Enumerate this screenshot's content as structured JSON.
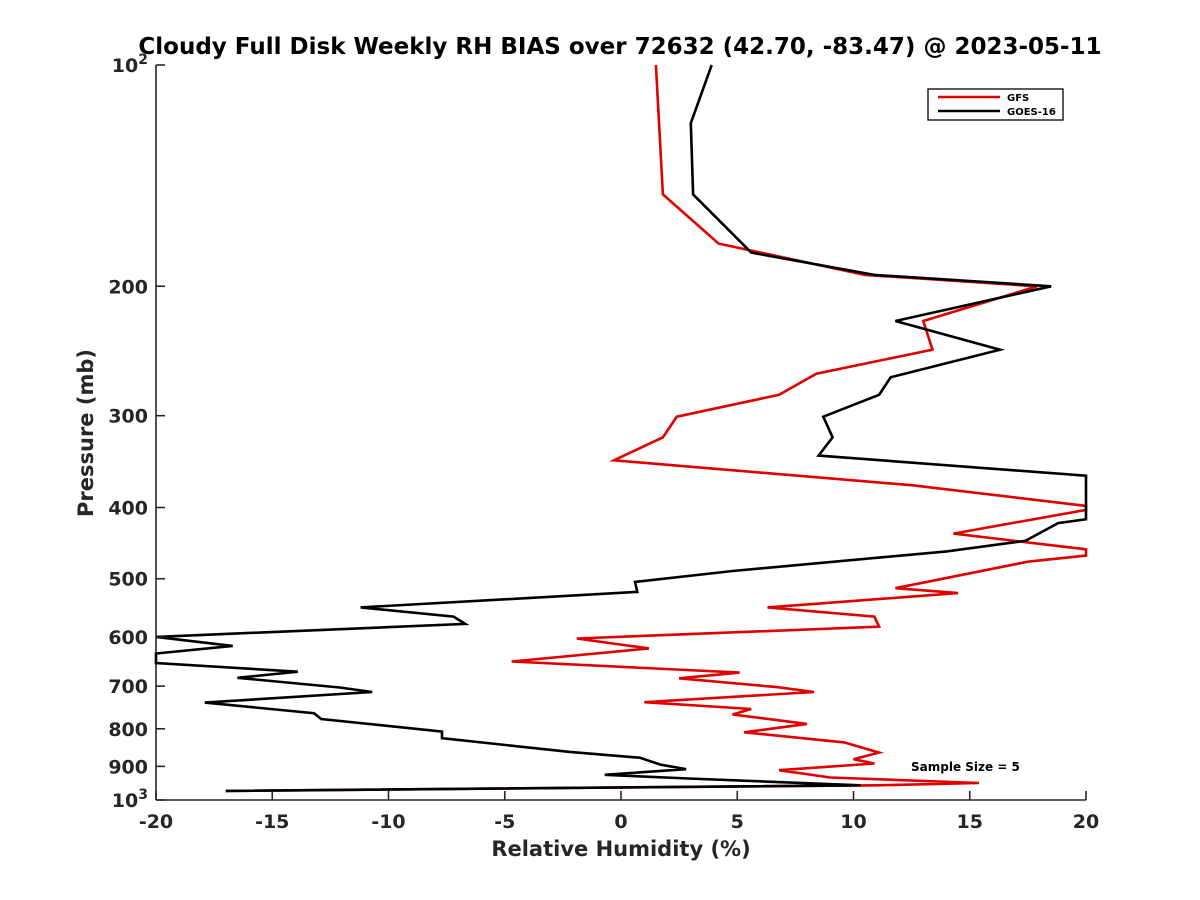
{
  "chart_data": {
    "type": "line",
    "title": "Cloudy Full Disk Weekly RH BIAS over 72632 (42.70, -83.47) @ 2023-05-11",
    "xlabel": "Relative Humidity (%)",
    "ylabel": "Pressure (mb)",
    "xlim": [
      -20,
      20
    ],
    "ylim": [
      100,
      1000
    ],
    "y_scale": "log",
    "y_reversed": true,
    "grid": false,
    "legend_position": "top-right",
    "x_ticks": [
      "-20",
      "-15",
      "-10",
      "-5",
      "0",
      "5",
      "10",
      "15",
      "20"
    ],
    "y_ticks": [
      {
        "value": 100,
        "base": "10",
        "exp": "2"
      },
      {
        "value": 200,
        "label": "200"
      },
      {
        "value": 300,
        "label": "300"
      },
      {
        "value": 400,
        "label": "400"
      },
      {
        "value": 500,
        "label": "500"
      },
      {
        "value": 600,
        "label": "600"
      },
      {
        "value": 700,
        "label": "700"
      },
      {
        "value": 800,
        "label": "800"
      },
      {
        "value": 900,
        "label": "900"
      },
      {
        "value": 1000,
        "base": "10",
        "exp": "3"
      }
    ],
    "series": [
      {
        "name": "GFS",
        "color": "#e00000",
        "points": [
          [
            1.5,
            100
          ],
          [
            1.8,
            150
          ],
          [
            4.2,
            175
          ],
          [
            10.5,
            193
          ],
          [
            17.9,
            200
          ],
          [
            13.0,
            223
          ],
          [
            13.4,
            244
          ],
          [
            8.4,
            263
          ],
          [
            6.8,
            281
          ],
          [
            2.4,
            301
          ],
          [
            1.8,
            321
          ],
          [
            -0.3,
            345
          ],
          [
            12.5,
            373
          ],
          [
            20,
            398
          ],
          [
            20,
            403
          ],
          [
            14.3,
            434
          ],
          [
            20,
            456
          ],
          [
            20,
            465
          ],
          [
            17.5,
            474
          ],
          [
            11.8,
            515
          ],
          [
            14.5,
            523
          ],
          [
            6.3,
            547
          ],
          [
            10.9,
            563
          ],
          [
            11.1,
            581
          ],
          [
            -1.9,
            603
          ],
          [
            1.2,
            622
          ],
          [
            -4.7,
            648
          ],
          [
            5.1,
            671
          ],
          [
            2.5,
            683
          ],
          [
            6.7,
            702
          ],
          [
            8.3,
            713
          ],
          [
            1.0,
            736
          ],
          [
            5.6,
            752
          ],
          [
            4.8,
            765
          ],
          [
            8.0,
            788
          ],
          [
            5.3,
            809
          ],
          [
            9.6,
            835
          ],
          [
            11.1,
            862
          ],
          [
            10.0,
            880
          ],
          [
            10.9,
            892
          ],
          [
            6.8,
            911
          ],
          [
            9.0,
            932
          ],
          [
            15.4,
            948
          ],
          [
            11.0,
            955
          ],
          [
            -17.0,
            972
          ]
        ]
      },
      {
        "name": "GOES-16",
        "color": "#000000",
        "points": [
          [
            3.9,
            100
          ],
          [
            3.0,
            120
          ],
          [
            3.1,
            150
          ],
          [
            5.6,
            180
          ],
          [
            10.9,
            193
          ],
          [
            18.5,
            200
          ],
          [
            11.8,
            223
          ],
          [
            16.3,
            244
          ],
          [
            11.6,
            266
          ],
          [
            11.1,
            281
          ],
          [
            8.7,
            301
          ],
          [
            9.1,
            321
          ],
          [
            8.5,
            340
          ],
          [
            20,
            362
          ],
          [
            20,
            415
          ],
          [
            18.8,
            420
          ],
          [
            17.4,
            444
          ],
          [
            14.0,
            459
          ],
          [
            4.8,
            488
          ],
          [
            0.6,
            505
          ],
          [
            0.7,
            521
          ],
          [
            -11.2,
            547
          ],
          [
            -7.2,
            563
          ],
          [
            -6.7,
            576
          ],
          [
            -20,
            600
          ],
          [
            -16.7,
            617
          ],
          [
            -20,
            632
          ],
          [
            -20,
            651
          ],
          [
            -13.9,
            669
          ],
          [
            -16.5,
            682
          ],
          [
            -12.1,
            703
          ],
          [
            -10.7,
            713
          ],
          [
            -17.9,
            737
          ],
          [
            -13.2,
            762
          ],
          [
            -12.9,
            776
          ],
          [
            -7.7,
            807
          ],
          [
            -7.7,
            824
          ],
          [
            -2.2,
            860
          ],
          [
            0.8,
            876
          ],
          [
            1.7,
            895
          ],
          [
            2.8,
            908
          ],
          [
            -0.7,
            924
          ],
          [
            2.9,
            935
          ],
          [
            10.3,
            955
          ],
          [
            -17.0,
            972
          ]
        ]
      }
    ],
    "annotations": [
      "Sample Size = 5"
    ]
  }
}
